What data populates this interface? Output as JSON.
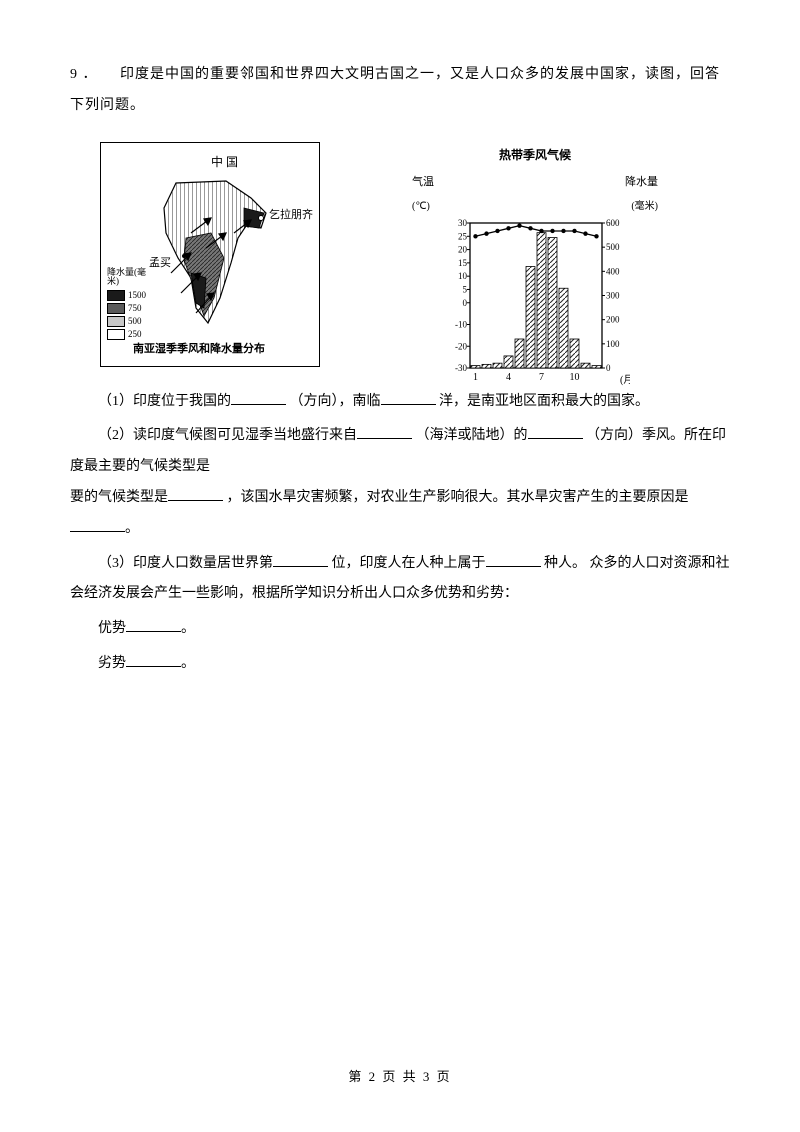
{
  "question": {
    "number": "9",
    "separator": "．",
    "intro": "印度是中国的重要邻国和世界四大文明古国之一，又是人口众多的发展中国家，读图，回答下列问题。"
  },
  "map": {
    "country_label": "中 国",
    "city_ne": "乞拉朋齐",
    "city_w": "孟买",
    "legend_title": "降水量(毫米)",
    "legend_values": [
      "1500",
      "750",
      "500",
      "250"
    ],
    "legend_colors": [
      "#1a1a1a",
      "#5a5a5a",
      "#c8c8c8",
      "#ffffff"
    ],
    "caption": "南亚湿季季风和降水量分布"
  },
  "chart": {
    "title": "热带季风气候",
    "left_axis_label": "气温",
    "right_axis_label": "降水量",
    "left_unit": "(℃)",
    "right_unit": "(毫米)",
    "x_label": "(月)",
    "temp_ticks": [
      "30",
      "25",
      "20",
      "15",
      "10",
      "5",
      "0",
      "-10",
      "-20",
      "-30"
    ],
    "precip_ticks": [
      "600",
      "500",
      "400",
      "300",
      "200",
      "100",
      "0"
    ],
    "months": [
      "1",
      "4",
      "7",
      "10"
    ],
    "temp_values": [
      25,
      26,
      27,
      28,
      29,
      28,
      27,
      27,
      27,
      27,
      26,
      25
    ],
    "precip_values": [
      10,
      15,
      20,
      50,
      120,
      420,
      560,
      540,
      330,
      120,
      20,
      10
    ],
    "temp_ymax": 30,
    "temp_ymin": -30,
    "precip_ymax": 600,
    "bar_color": "#ffffff",
    "bar_hatch": "#333333",
    "line_color": "#000000",
    "axis_color": "#000000"
  },
  "sub_questions": {
    "q1_a": "（1）印度位于我国的",
    "q1_b": "（方向），南临",
    "q1_c": "洋，是南亚地区面积最大的国家。",
    "q2_a": "（2）读印度气候图可见湿季当地盛行来自",
    "q2_b": "（海洋或陆地）的",
    "q2_c": "（方向）季风。所在印度最主要的气候类型是",
    "q2_d": "，该国水旱灾害频繁，对农业生产影响很大。其水旱灾害产生的主要原因是",
    "q2_e": "。",
    "q3_a": "（3）印度人口数量居世界第",
    "q3_b": "位，印度人在人种上属于",
    "q3_c": "种人。 众多的人口对资源和社会经济发展会产生一些影响，根据所学知识分析出人口众多优势和劣势：",
    "q3_adv": "优势",
    "q3_dis": "劣势",
    "q3_period": "。"
  },
  "footer": {
    "text": "第 2 页 共 3 页"
  }
}
